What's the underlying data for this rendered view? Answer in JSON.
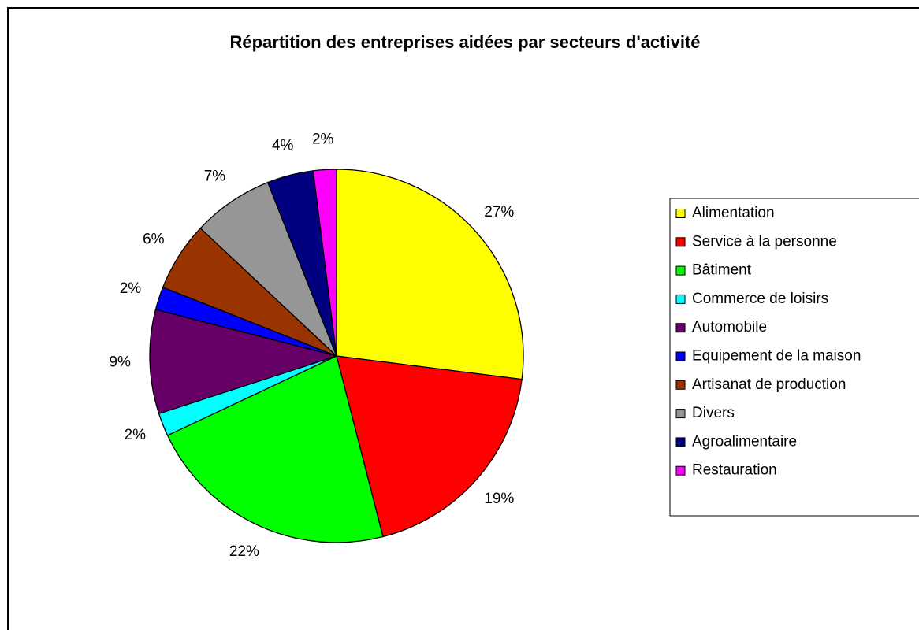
{
  "chart_data": {
    "type": "pie",
    "title": "Répartition des entreprises aidées par secteurs d'activité",
    "categories": [
      "Alimentation",
      "Service à la personne",
      "Bâtiment",
      "Commerce de loisirs",
      "Automobile",
      "Equipement de la maison",
      "Artisanat de production",
      "Divers",
      "Agroalimentaire",
      "Restauration"
    ],
    "values": [
      27,
      19,
      22,
      2,
      9,
      2,
      6,
      7,
      4,
      2
    ],
    "value_labels": [
      "27%",
      "19%",
      "22%",
      "2%",
      "9%",
      "2%",
      "6%",
      "7%",
      "4%",
      "2%"
    ],
    "colors": [
      "#ffff00",
      "#ff0000",
      "#00ff00",
      "#00ffff",
      "#660066",
      "#0000ff",
      "#993300",
      "#969696",
      "#000080",
      "#ff00ff"
    ],
    "legend": "right"
  }
}
